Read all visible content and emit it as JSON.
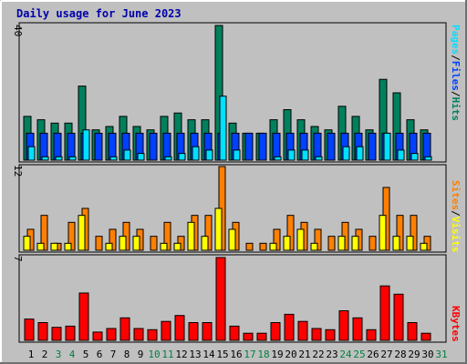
{
  "chart_data": {
    "type": "bar",
    "title": "Daily usage for June 2023",
    "colors": {
      "hits": "#00805c",
      "files": "#0040ff",
      "pages": "#00e0ff",
      "visits": "#ffff00",
      "sites": "#ff8000",
      "kbytes": "#ff0000",
      "weekday_label": "#000000",
      "weekend_label": "#008040",
      "panel": "#c0c0c0",
      "background": "#c0c0c0"
    },
    "days": [
      "1",
      "2",
      "3",
      "4",
      "5",
      "6",
      "7",
      "8",
      "9",
      "10",
      "11",
      "12",
      "13",
      "14",
      "15",
      "16",
      "17",
      "18",
      "19",
      "20",
      "21",
      "22",
      "23",
      "24",
      "25",
      "26",
      "27",
      "28",
      "29",
      "30",
      "31"
    ],
    "weekend_days": [
      "3",
      "4",
      "10",
      "11",
      "17",
      "18",
      "24",
      "25",
      "31"
    ],
    "panels": [
      {
        "id": "top",
        "ymax_label": "40",
        "ymax": 40,
        "legend": [
          "Pages",
          "/",
          "Files",
          "/",
          "Hits"
        ],
        "legend_colors": [
          "#00e0ff",
          "#000000",
          "#0040ff",
          "#000000",
          "#00805c"
        ],
        "series": [
          {
            "key": "hits",
            "name": "Hits",
            "values": [
              13,
              12,
              11,
              11,
              22,
              9,
              10,
              13,
              10,
              9,
              13,
              14,
              12,
              12,
              40,
              11,
              8,
              8,
              12,
              15,
              12,
              10,
              9,
              16,
              13,
              9,
              24,
              20,
              12,
              9,
              0
            ]
          },
          {
            "key": "files",
            "name": "Files",
            "values": [
              8,
              8,
              8,
              8,
              8,
              8,
              8,
              8,
              8,
              8,
              8,
              8,
              8,
              8,
              8,
              8,
              8,
              8,
              8,
              8,
              8,
              8,
              8,
              8,
              8,
              8,
              8,
              8,
              8,
              8,
              0
            ]
          },
          {
            "key": "pages",
            "name": "Pages",
            "values": [
              4,
              1,
              1,
              1,
              9,
              0,
              1,
              3,
              2,
              0,
              1,
              2,
              4,
              3,
              19,
              3,
              0,
              0,
              1,
              3,
              3,
              1,
              0,
              4,
              4,
              0,
              8,
              3,
              2,
              1,
              0
            ]
          }
        ]
      },
      {
        "id": "middle",
        "ymax_label": "12",
        "ymax": 12,
        "legend": [
          "Sites",
          "/",
          "Visits"
        ],
        "legend_colors": [
          "#ff8000",
          "#000000",
          "#ffff00"
        ],
        "series": [
          {
            "key": "sites",
            "name": "Sites",
            "values": [
              3,
              5,
              1,
              4,
              6,
              2,
              3,
              4,
              3,
              2,
              4,
              2,
              5,
              5,
              12,
              4,
              1,
              1,
              3,
              5,
              4,
              3,
              2,
              4,
              3,
              2,
              9,
              5,
              5,
              2,
              0
            ]
          },
          {
            "key": "visits",
            "name": "Visits",
            "values": [
              2,
              1,
              1,
              1,
              5,
              0,
              1,
              2,
              2,
              0,
              1,
              1,
              4,
              2,
              6,
              3,
              0,
              0,
              1,
              2,
              3,
              1,
              0,
              2,
              2,
              0,
              5,
              2,
              2,
              1,
              0
            ]
          }
        ]
      },
      {
        "id": "bottom",
        "ymax_label": "7",
        "ymax": 7,
        "legend": [
          "KBytes"
        ],
        "legend_colors": [
          "#ff0000"
        ],
        "series": [
          {
            "key": "kbytes",
            "name": "KBytes",
            "values": [
              1.8,
              1.5,
              1.1,
              1.2,
              4.0,
              0.7,
              1.0,
              1.9,
              1.0,
              0.9,
              1.6,
              2.1,
              1.5,
              1.5,
              7.0,
              1.2,
              0.6,
              0.6,
              1.5,
              2.2,
              1.6,
              1.0,
              0.9,
              2.5,
              1.9,
              0.9,
              4.6,
              3.9,
              1.5,
              0.6,
              0
            ]
          }
        ]
      }
    ]
  }
}
